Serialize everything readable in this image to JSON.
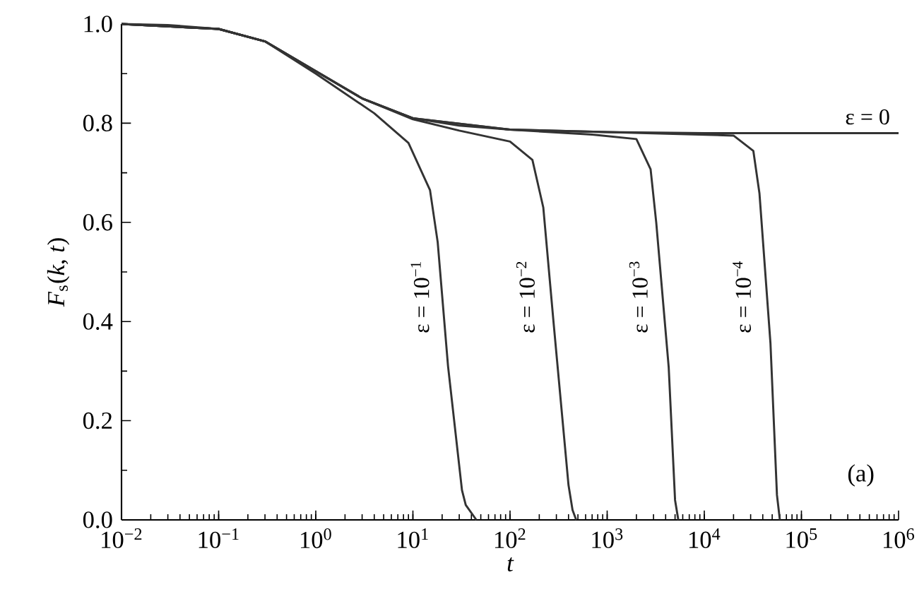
{
  "chart_data": {
    "type": "line",
    "xlabel": "t",
    "ylabel": "*F*$_{s}$(*k*, *t*)",
    "log": "x",
    "xlim": [
      0.01,
      1000000
    ],
    "ylim": [
      0,
      1.0
    ],
    "xticks": [
      {
        "value": 0.01,
        "label": "10$^{−2}$"
      },
      {
        "value": 0.1,
        "label": "10$^{−1}$"
      },
      {
        "value": 1,
        "label": "10$^{0}$"
      },
      {
        "value": 10,
        "label": "10$^{1}$"
      },
      {
        "value": 100,
        "label": "10$^{2}$"
      },
      {
        "value": 1000,
        "label": "10$^{3}$"
      },
      {
        "value": 10000,
        "label": "10$^{4}$"
      },
      {
        "value": 100000,
        "label": "10$^{5}$"
      },
      {
        "value": 1000000,
        "label": "10$^{6}$"
      }
    ],
    "yticks": [
      {
        "value": 0,
        "label": "0.0"
      },
      {
        "value": 0.2,
        "label": "0.2"
      },
      {
        "value": 0.4,
        "label": "0.4"
      },
      {
        "value": 0.6,
        "label": "0.6"
      },
      {
        "value": 0.8,
        "label": "0.8"
      },
      {
        "value": 1.0,
        "label": "1.0"
      }
    ],
    "grid": false,
    "legend": false,
    "marker": "none",
    "line_style": "solid",
    "annotations": [
      "(a)"
    ],
    "series": [
      {
        "name": "ε = 0",
        "color": "#333333",
        "x": [
          0.01,
          0.03,
          0.1,
          0.3,
          1,
          3,
          10,
          30,
          100,
          1000,
          10000,
          1000000
        ],
        "values": [
          1.0,
          0.998,
          0.99,
          0.965,
          0.905,
          0.85,
          0.81,
          0.795,
          0.787,
          0.782,
          0.78,
          0.78
        ]
      },
      {
        "name": "ε = 10$^{−1}$",
        "color": "#333333",
        "x": [
          0.01,
          0.1,
          0.3,
          1,
          4,
          9,
          15,
          18,
          23,
          32,
          35,
          45
        ],
        "values": [
          1.0,
          0.99,
          0.965,
          0.9,
          0.82,
          0.76,
          0.665,
          0.56,
          0.31,
          0.06,
          0.03,
          0
        ]
      },
      {
        "name": "ε = 10$^{−2}$",
        "color": "#333333",
        "x": [
          0.01,
          0.1,
          0.3,
          1,
          3,
          10,
          30,
          100,
          170,
          220,
          280,
          400,
          440,
          480
        ],
        "values": [
          1.0,
          0.99,
          0.965,
          0.905,
          0.85,
          0.808,
          0.785,
          0.763,
          0.726,
          0.63,
          0.4,
          0.07,
          0.02,
          0
        ]
      },
      {
        "name": "ε = 10$^{−3}$",
        "color": "#333333",
        "x": [
          0.01,
          0.1,
          0.3,
          1,
          3,
          10,
          100,
          700,
          2000,
          2800,
          3200,
          4300,
          5000,
          5400
        ],
        "values": [
          1.0,
          0.99,
          0.965,
          0.905,
          0.85,
          0.81,
          0.787,
          0.777,
          0.768,
          0.707,
          0.6,
          0.308,
          0.04,
          0
        ]
      },
      {
        "name": "ε = 10$^{−4}$",
        "color": "#333333",
        "x": [
          0.01,
          0.1,
          0.3,
          1,
          3,
          10,
          100,
          1000,
          20000,
          32000,
          37000,
          48000,
          56000,
          60000
        ],
        "values": [
          1.0,
          0.99,
          0.965,
          0.905,
          0.85,
          0.81,
          0.787,
          0.782,
          0.775,
          0.744,
          0.658,
          0.356,
          0.05,
          0
        ]
      }
    ]
  }
}
